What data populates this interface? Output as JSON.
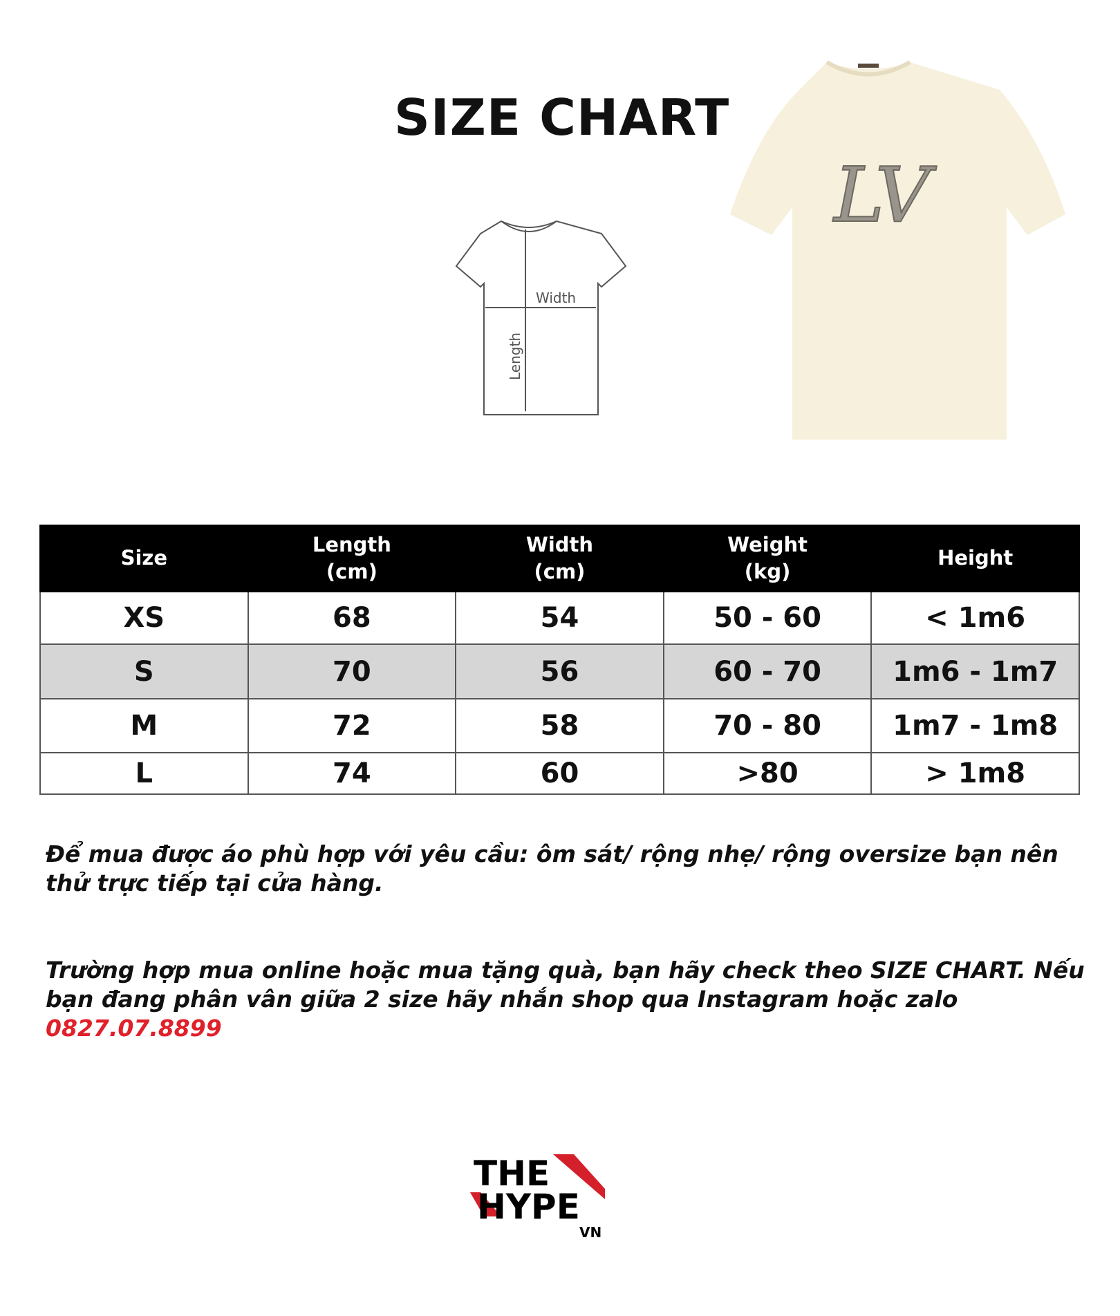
{
  "title": "SIZE CHART",
  "diagram": {
    "width_label": "Width",
    "length_label": "Length"
  },
  "table": {
    "headers": [
      "Size",
      "Length\n(cm)",
      "Width\n(cm)",
      "Weight\n(kg)",
      "Height"
    ],
    "header_lines": [
      [
        "Size"
      ],
      [
        "Length",
        "(cm)"
      ],
      [
        "Width",
        "(cm)"
      ],
      [
        "Weight",
        "(kg)"
      ],
      [
        "Height"
      ]
    ],
    "rows": [
      [
        "XS",
        "68",
        "54",
        "50 - 60",
        "< 1m6"
      ],
      [
        "S",
        "70",
        "56",
        "60 - 70",
        "1m6 - 1m7"
      ],
      [
        "M",
        "72",
        "58",
        "70 - 80",
        "1m7 - 1m8"
      ],
      [
        "L",
        "74",
        "60",
        ">80",
        "> 1m8"
      ]
    ],
    "highlight_row_color": "#d6d6d6"
  },
  "notes": {
    "fit": "Để mua được áo phù hợp với yêu cầu: ôm sát/ rộng nhẹ/ rộng oversize bạn nên thử trực tiếp tại cửa hàng.",
    "online": "Trường hợp mua online hoặc mua tặng quà, bạn hãy check theo SIZE CHART. Nếu bạn đang phân vân giữa 2 size hãy nhắn shop qua Instagram hoặc zalo",
    "phone": "0827.07.8899",
    "phone_color": "#e0202a"
  },
  "logo": {
    "line1": "THE",
    "line2": "HYPE",
    "line3": "VN",
    "accent": "#d4202a"
  },
  "product_image": {
    "print": "LV",
    "color": "#f6f0dc"
  }
}
